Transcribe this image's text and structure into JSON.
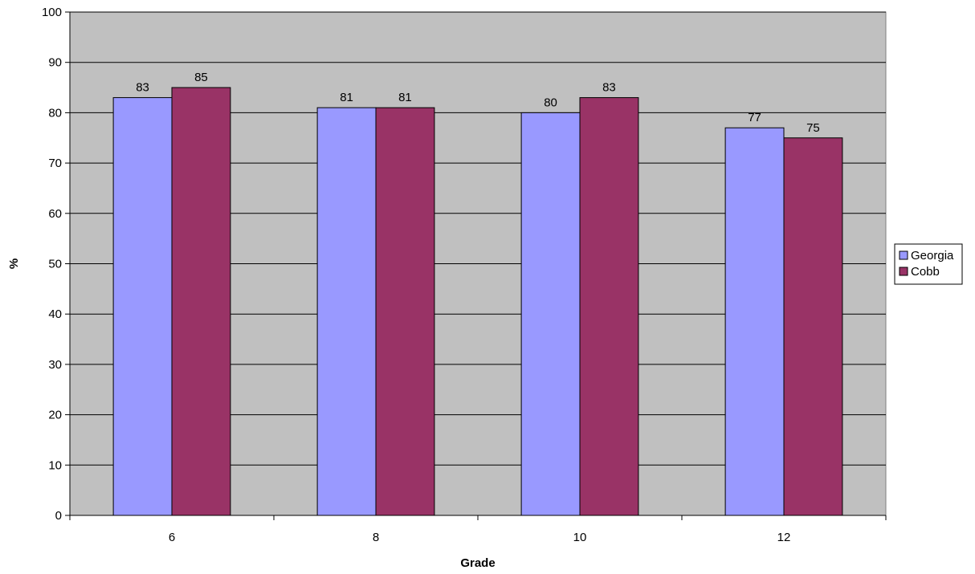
{
  "chart_data": {
    "type": "bar",
    "categories": [
      "6",
      "8",
      "10",
      "12"
    ],
    "series": [
      {
        "name": "Georgia",
        "values": [
          83,
          81,
          80,
          77
        ],
        "color": "#9999ff"
      },
      {
        "name": "Cobb",
        "values": [
          85,
          81,
          83,
          75
        ],
        "color": "#993366"
      }
    ],
    "xlabel": "Grade",
    "ylabel": "%",
    "ylim": [
      0,
      100
    ],
    "yticks": [
      "0",
      "10",
      "20",
      "30",
      "40",
      "50",
      "60",
      "70",
      "80",
      "90",
      "100"
    ],
    "grid": true,
    "plot_background": "#c0c0c0",
    "legend": "right",
    "data_labels": true
  }
}
